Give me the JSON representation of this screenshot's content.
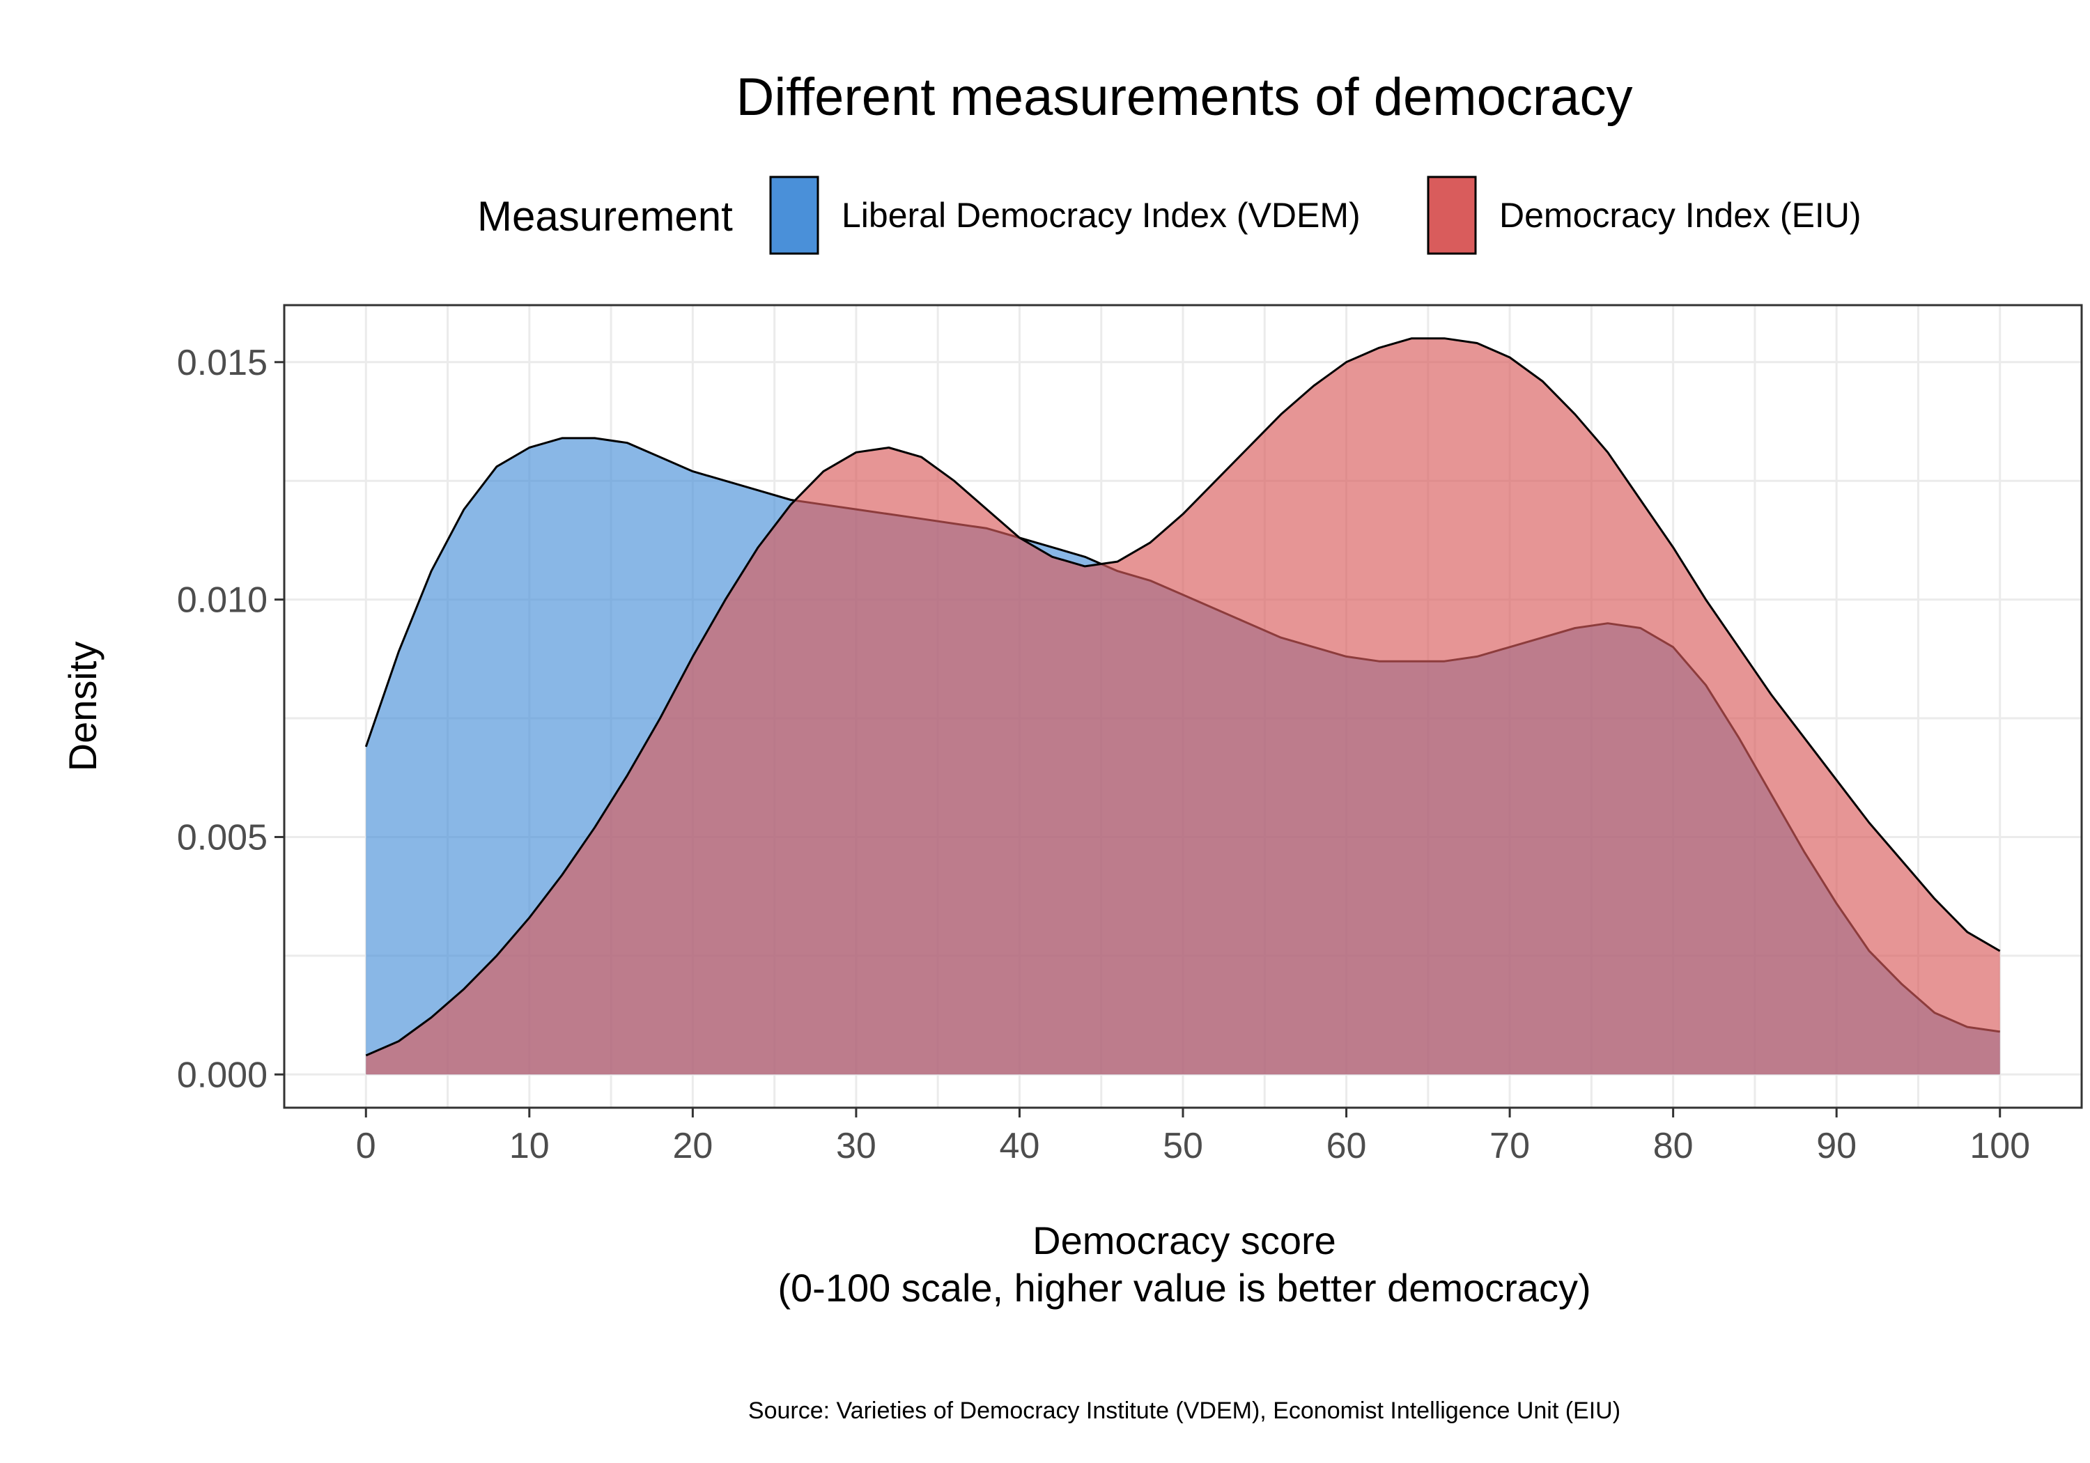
{
  "chart_data": {
    "type": "area",
    "title": "Different measurements of democracy",
    "xlabel": "Democracy score",
    "xlabel_sub": "(0-100 scale, higher value is better democracy)",
    "ylabel": "Density",
    "caption": "Source: Varieties of Democracy Institute (VDEM), Economist Intelligence Unit (EIU)",
    "legend": {
      "title": "Measurement",
      "placement": "top"
    },
    "xlim": [
      -5,
      105
    ],
    "ylim": [
      -0.0007,
      0.0162
    ],
    "x_ticks": [
      0,
      10,
      20,
      30,
      40,
      50,
      60,
      70,
      80,
      90,
      100
    ],
    "x_tick_labels": [
      "0",
      "10",
      "20",
      "30",
      "40",
      "50",
      "60",
      "70",
      "80",
      "90",
      "100"
    ],
    "y_ticks": [
      0,
      0.005,
      0.01,
      0.015
    ],
    "y_tick_labels": [
      "0.000",
      "0.005",
      "0.010",
      "0.015"
    ],
    "grid": true,
    "series": [
      {
        "name": "Liberal Democracy Index (VDEM)",
        "fill": "#4a90d9",
        "x": [
          0,
          2,
          4,
          6,
          8,
          10,
          12,
          14,
          16,
          18,
          20,
          22,
          24,
          26,
          28,
          30,
          32,
          34,
          36,
          38,
          40,
          42,
          44,
          46,
          48,
          50,
          52,
          54,
          56,
          58,
          60,
          62,
          64,
          66,
          68,
          70,
          72,
          74,
          76,
          78,
          80,
          82,
          84,
          86,
          88,
          90,
          92,
          94,
          96,
          98,
          100
        ],
        "y": [
          0.0069,
          0.0089,
          0.0106,
          0.0119,
          0.0128,
          0.0132,
          0.0134,
          0.0134,
          0.0133,
          0.013,
          0.0127,
          0.0125,
          0.0123,
          0.0121,
          0.012,
          0.0119,
          0.0118,
          0.0117,
          0.0116,
          0.0115,
          0.0113,
          0.0111,
          0.0109,
          0.0106,
          0.0104,
          0.0101,
          0.0098,
          0.0095,
          0.0092,
          0.009,
          0.0088,
          0.0087,
          0.0087,
          0.0087,
          0.0088,
          0.009,
          0.0092,
          0.0094,
          0.0095,
          0.0094,
          0.009,
          0.0082,
          0.0071,
          0.0059,
          0.0047,
          0.0036,
          0.0026,
          0.0019,
          0.0013,
          0.001,
          0.0009
        ]
      },
      {
        "name": "Democracy Index (EIU)",
        "fill": "#d95c5c",
        "x": [
          0,
          2,
          4,
          6,
          8,
          10,
          12,
          14,
          16,
          18,
          20,
          22,
          24,
          26,
          28,
          30,
          32,
          34,
          36,
          38,
          40,
          42,
          44,
          46,
          48,
          50,
          52,
          54,
          56,
          58,
          60,
          62,
          64,
          66,
          68,
          70,
          72,
          74,
          76,
          78,
          80,
          82,
          84,
          86,
          88,
          90,
          92,
          94,
          96,
          98,
          100
        ],
        "y": [
          0.0004,
          0.0007,
          0.0012,
          0.0018,
          0.0025,
          0.0033,
          0.0042,
          0.0052,
          0.0063,
          0.0075,
          0.0088,
          0.01,
          0.0111,
          0.012,
          0.0127,
          0.0131,
          0.0132,
          0.013,
          0.0125,
          0.0119,
          0.0113,
          0.0109,
          0.0107,
          0.0108,
          0.0112,
          0.0118,
          0.0125,
          0.0132,
          0.0139,
          0.0145,
          0.015,
          0.0153,
          0.0155,
          0.0155,
          0.0154,
          0.0151,
          0.0146,
          0.0139,
          0.0131,
          0.0121,
          0.0111,
          0.01,
          0.009,
          0.008,
          0.0071,
          0.0062,
          0.0053,
          0.0045,
          0.0037,
          0.003,
          0.0026
        ]
      }
    ]
  }
}
